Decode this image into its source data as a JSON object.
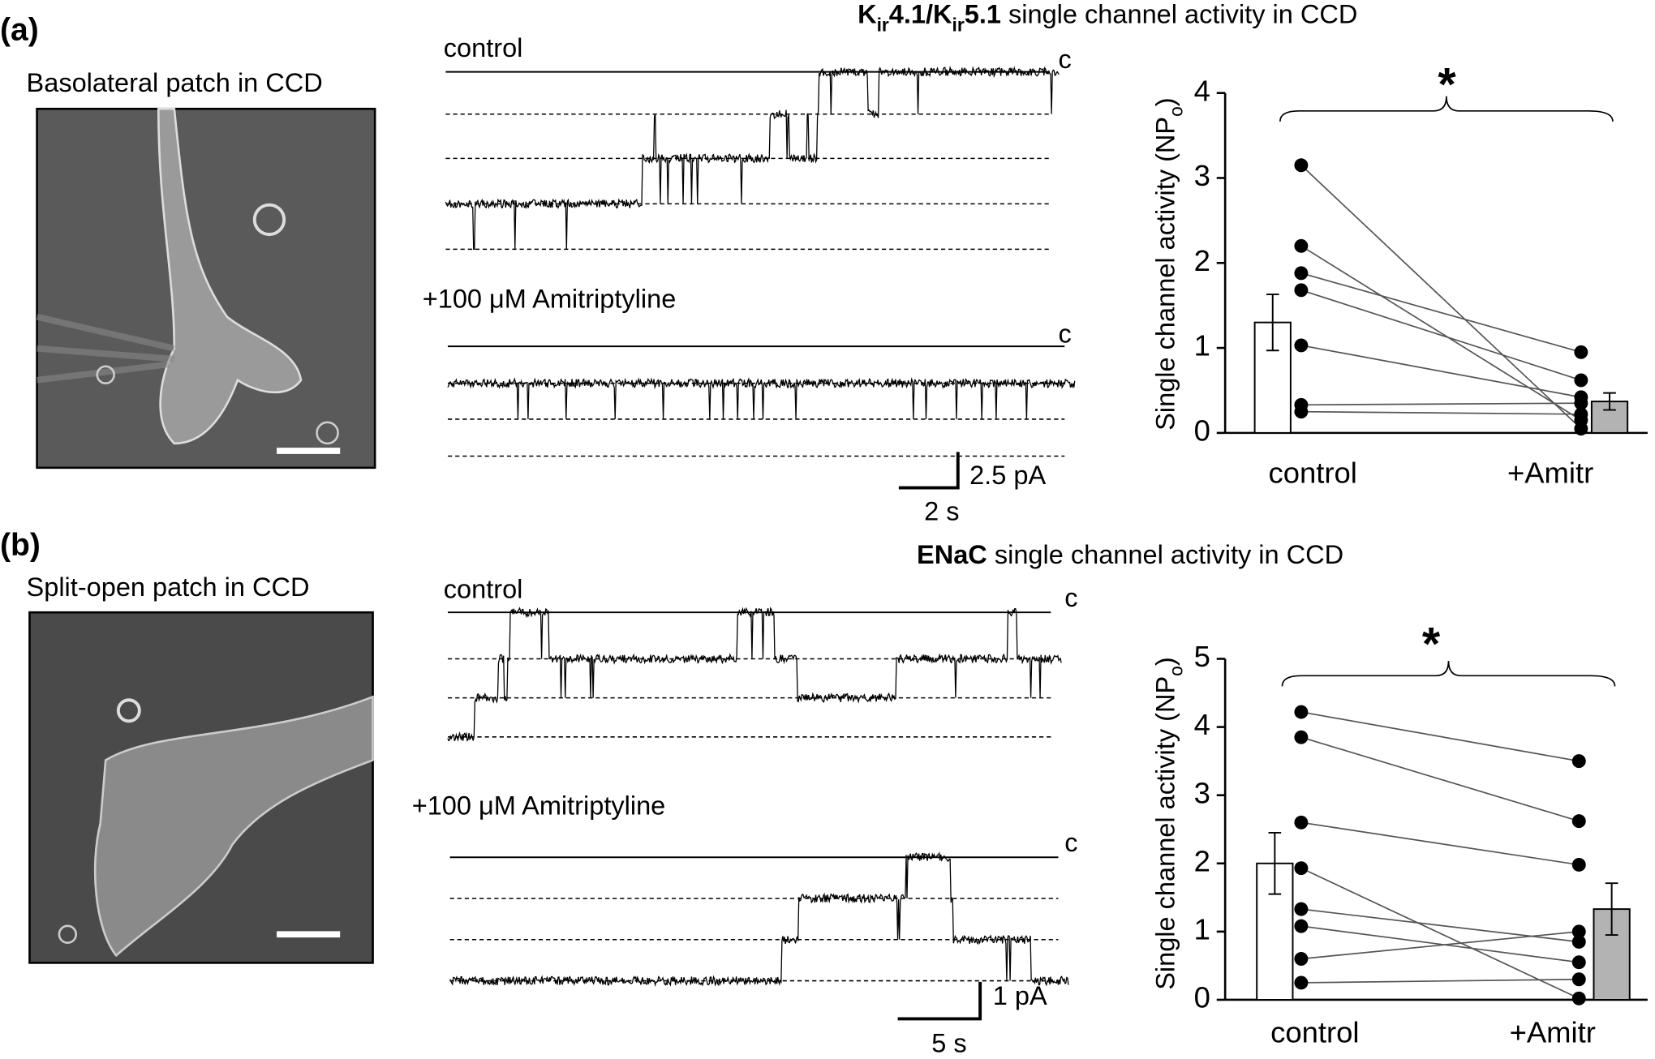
{
  "panels": [
    {
      "label": "(a)",
      "image_caption": "Basolateral patch in CCD",
      "traces": [
        {
          "label": "control",
          "closed_label": "c"
        },
        {
          "label": "+100 μM Amitriptyline",
          "closed_label": "c"
        }
      ],
      "scale_bar": {
        "current": "2.5 pA",
        "time": "2 s"
      }
    },
    {
      "label": "(b)",
      "image_caption": "Split-open patch in CCD",
      "traces": [
        {
          "label": "control",
          "closed_label": "c"
        },
        {
          "label": "+100 μM Amitriptyline",
          "closed_label": "c"
        }
      ],
      "scale_bar": {
        "current": "1 pA",
        "time": "5 s"
      }
    }
  ],
  "chart_data": [
    {
      "type": "bar",
      "title_segments": [
        {
          "text": "K",
          "bold": true
        },
        {
          "text": "ir",
          "bold": true,
          "sub": true
        },
        {
          "text": "4.1/K",
          "bold": true
        },
        {
          "text": "ir",
          "bold": true,
          "sub": true
        },
        {
          "text": "5.1",
          "bold": true
        },
        {
          "text": " single channel activity in CCD"
        }
      ],
      "ylabel_segments": [
        {
          "text": "Single channel activity (NP"
        },
        {
          "text": "o",
          "sub": true
        },
        {
          "text": ")"
        }
      ],
      "categories": [
        "control",
        "+Amitr"
      ],
      "values": [
        1.3,
        0.37
      ],
      "errors": [
        0.33,
        0.1
      ],
      "colors": [
        "#ffffff",
        "#b3b3b3"
      ],
      "points": [
        [
          3.15,
          2.2,
          1.88,
          1.68,
          1.03,
          0.33,
          0.25
        ],
        [
          0.05,
          0.15,
          0.95,
          0.62,
          0.42,
          0.35,
          0.22
        ]
      ],
      "significance": "*",
      "ylim": [
        0,
        4
      ],
      "yticks": [
        0,
        1,
        2,
        3,
        4
      ]
    },
    {
      "type": "bar",
      "title_segments": [
        {
          "text": "ENaC",
          "bold": true
        },
        {
          "text": " single channel activity in CCD"
        }
      ],
      "ylabel_segments": [
        {
          "text": "Single channel activity (NP"
        },
        {
          "text": "o",
          "sub": true
        },
        {
          "text": ")"
        }
      ],
      "categories": [
        "control",
        "+Amitr"
      ],
      "values": [
        2.0,
        1.33
      ],
      "errors": [
        0.45,
        0.38
      ],
      "colors": [
        "#ffffff",
        "#b3b3b3"
      ],
      "points": [
        [
          4.22,
          3.85,
          2.6,
          1.93,
          1.33,
          1.08,
          0.6,
          0.25
        ],
        [
          3.5,
          2.62,
          1.98,
          0.02,
          0.85,
          0.55,
          1.0,
          0.3
        ]
      ],
      "significance": "*",
      "ylim": [
        0,
        5
      ],
      "yticks": [
        0,
        1,
        2,
        3,
        4,
        5
      ]
    }
  ]
}
